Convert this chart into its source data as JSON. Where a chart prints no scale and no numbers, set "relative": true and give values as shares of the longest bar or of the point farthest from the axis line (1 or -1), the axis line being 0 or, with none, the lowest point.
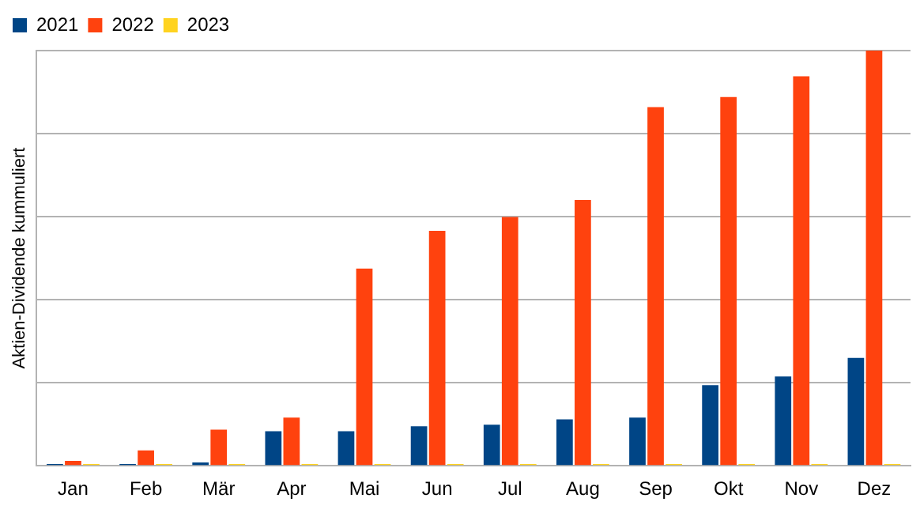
{
  "chart_data": {
    "type": "bar",
    "ylabel": "Aktien-Dividende kummuliert",
    "relative": true,
    "grid": "y",
    "legend": "top left",
    "categories": [
      "Jan",
      "Feb",
      "Mär",
      "Apr",
      "Mai",
      "Jun",
      "Jul",
      "Aug",
      "Sep",
      "Okt",
      "Nov",
      "Dez"
    ],
    "series": [
      {
        "name": "2021",
        "color": "#004586",
        "values": [
          0.004,
          0.004,
          0.008,
          0.083,
          0.083,
          0.095,
          0.099,
          0.112,
          0.116,
          0.194,
          0.215,
          0.26
        ]
      },
      {
        "name": "2022",
        "color": "#ff420e",
        "values": [
          0.012,
          0.037,
          0.087,
          0.116,
          0.475,
          0.566,
          0.599,
          0.64,
          0.864,
          0.888,
          0.938,
          1
        ]
      },
      {
        "name": "2023",
        "color": "#ffd320",
        "values": [
          0.004,
          0.004,
          0.004,
          0.004,
          0.004,
          0.004,
          0.004,
          0.004,
          0.004,
          0.004,
          0.004,
          0.004
        ]
      }
    ]
  }
}
